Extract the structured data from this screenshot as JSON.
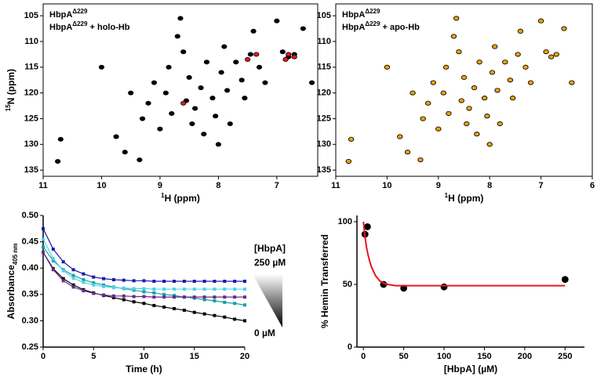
{
  "chart_data": [
    {
      "type": "scatter",
      "xlabel_sup": "1",
      "xlabel": "H (ppm)",
      "ylabel_sup": "15",
      "ylabel": "N (ppm)",
      "xlim": [
        11,
        6.3
      ],
      "ylim": [
        136.2,
        102.7
      ],
      "xticks": [
        11,
        10,
        9,
        8,
        7
      ],
      "yticks": [
        105,
        110,
        115,
        120,
        125,
        130,
        135
      ],
      "series": [
        {
          "name": "HbpA",
          "name_sup": "Δ229",
          "color": "#000000",
          "x": [
            10.75,
            10.7,
            10.0,
            9.75,
            9.6,
            9.35,
            9.3,
            9.2,
            9.1,
            9.0,
            8.9,
            8.85,
            8.8,
            8.7,
            8.6,
            8.55,
            8.5,
            8.45,
            8.4,
            8.3,
            8.25,
            8.2,
            8.1,
            8.05,
            7.95,
            7.9,
            7.85,
            7.8,
            7.7,
            7.6,
            7.55,
            7.45,
            7.4,
            7.3,
            7.2,
            7.0,
            6.9,
            6.8,
            6.7,
            6.55,
            6.4,
            8.65,
            9.5,
            8.0
          ],
          "y": [
            133.3,
            129,
            115,
            128.5,
            131.5,
            133,
            125,
            122,
            118,
            127,
            120,
            115,
            124,
            109,
            112,
            121.5,
            117,
            126,
            123,
            119,
            128,
            114,
            121,
            124.5,
            116,
            111,
            119.5,
            126,
            114,
            117.5,
            121,
            112.5,
            108,
            115,
            118,
            106,
            112,
            113,
            112.5,
            107.5,
            118,
            105.5,
            120,
            130
          ]
        },
        {
          "name": "HbpA",
          "name_sup": "Δ229",
          "name_suffix": " + holo-Hb",
          "color": "#e8171b",
          "x": [
            7.5,
            7.35,
            6.8,
            6.7,
            8.6,
            6.85
          ],
          "y": [
            113.5,
            112.5,
            112.5,
            113,
            122,
            113.5
          ]
        }
      ]
    },
    {
      "type": "scatter",
      "xlabel_sup": "1",
      "xlabel": "H (ppm)",
      "xlim": [
        11,
        6
      ],
      "ylim": [
        136.2,
        102.7
      ],
      "xticks": [
        11,
        10,
        9,
        8,
        7,
        6
      ],
      "yticks": [
        105,
        110,
        115,
        120,
        125,
        130,
        135
      ],
      "series": [
        {
          "name": "HbpA",
          "name_sup": "Δ229",
          "color": "#000000",
          "x": [
            10.75,
            10.7,
            10.0,
            9.75,
            9.6,
            9.35,
            9.3,
            9.2,
            9.1,
            9.0,
            8.9,
            8.85,
            8.8,
            8.7,
            8.6,
            8.55,
            8.5,
            8.45,
            8.4,
            8.3,
            8.25,
            8.2,
            8.1,
            8.05,
            7.95,
            7.9,
            7.85,
            7.8,
            7.7,
            7.6,
            7.55,
            7.45,
            7.4,
            7.3,
            7.2,
            7.0,
            6.9,
            6.8,
            6.7,
            6.55,
            6.4,
            8.65,
            9.5,
            8.0
          ],
          "y": [
            133.3,
            129,
            115,
            128.5,
            131.5,
            133,
            125,
            122,
            118,
            127,
            120,
            115,
            124,
            109,
            112,
            121.5,
            117,
            126,
            123,
            119,
            128,
            114,
            121,
            124.5,
            116,
            111,
            119.5,
            126,
            114,
            117.5,
            121,
            112.5,
            108,
            115,
            118,
            106,
            112,
            113,
            112.5,
            107.5,
            118,
            105.5,
            120,
            130
          ]
        },
        {
          "name": "HbpA",
          "name_sup": "Δ229",
          "name_suffix": " + apo-Hb",
          "color": "#f5a300",
          "x": [
            10.75,
            10.7,
            10.0,
            9.75,
            9.6,
            9.35,
            9.3,
            9.2,
            9.1,
            9.0,
            8.9,
            8.85,
            8.8,
            8.7,
            8.6,
            8.55,
            8.5,
            8.45,
            8.4,
            8.3,
            8.25,
            8.2,
            8.1,
            8.05,
            7.95,
            7.9,
            7.85,
            7.8,
            7.7,
            7.6,
            7.55,
            7.45,
            7.4,
            7.3,
            7.2,
            7.0,
            6.9,
            6.8,
            6.7,
            6.55,
            6.4,
            8.65,
            9.5,
            8.0
          ],
          "y": [
            133.3,
            129,
            115,
            128.5,
            131.5,
            133,
            125,
            122,
            118,
            127,
            120,
            115,
            124,
            109,
            112,
            121.5,
            117,
            126,
            123,
            119,
            128,
            114,
            121,
            124.5,
            116,
            111,
            119.5,
            126,
            114,
            117.5,
            121,
            112.5,
            108,
            115,
            118,
            106,
            112,
            113,
            112.5,
            107.5,
            118,
            105.5,
            120,
            130
          ]
        }
      ]
    },
    {
      "type": "line",
      "xlabel": "Time (h)",
      "ylabel": "Absorbance",
      "ylabel_sub": "405 nm",
      "xlim": [
        0,
        20
      ],
      "ylim": [
        0.25,
        0.5
      ],
      "xticks": [
        0,
        5,
        10,
        15,
        20
      ],
      "yticks": [
        0.25,
        {
          "value": 0.3,
          "label": "0.30"
        },
        0.35,
        {
          "value": 0.4,
          "label": "0.40"
        },
        0.45,
        {
          "value": 0.5,
          "label": "0.50"
        }
      ],
      "legend_title": "[HbpA]",
      "legend_max": "250 µM",
      "legend_min": "0 µM",
      "x": [
        0,
        1,
        2,
        3,
        4,
        5,
        6,
        7,
        8,
        9,
        10,
        11,
        12,
        13,
        14,
        15,
        16,
        17,
        18,
        19,
        20
      ],
      "series": [
        {
          "color": "#000000",
          "values": [
            0.43,
            0.399,
            0.38,
            0.368,
            0.359,
            0.353,
            0.348,
            0.344,
            0.34,
            0.336,
            0.333,
            0.329,
            0.326,
            0.323,
            0.32,
            0.316,
            0.313,
            0.31,
            0.307,
            0.303,
            0.3
          ]
        },
        {
          "color": "#17a0a0",
          "values": [
            0.44,
            0.414,
            0.397,
            0.386,
            0.378,
            0.372,
            0.368,
            0.364,
            0.361,
            0.358,
            0.355,
            0.353,
            0.35,
            0.348,
            0.345,
            0.343,
            0.34,
            0.338,
            0.335,
            0.333,
            0.33
          ]
        },
        {
          "color": "#6a2a8a",
          "values": [
            0.43,
            0.397,
            0.376,
            0.364,
            0.357,
            0.352,
            0.349,
            0.347,
            0.347,
            0.346,
            0.346,
            0.345,
            0.345,
            0.345,
            0.345,
            0.345,
            0.345,
            0.345,
            0.345,
            0.345,
            0.345
          ]
        },
        {
          "color": "#4fd3e6",
          "values": [
            0.455,
            0.418,
            0.395,
            0.381,
            0.373,
            0.368,
            0.365,
            0.363,
            0.362,
            0.361,
            0.361,
            0.36,
            0.36,
            0.36,
            0.36,
            0.36,
            0.36,
            0.36,
            0.36,
            0.36,
            0.36
          ]
        },
        {
          "color": "#1c1ca8",
          "values": [
            0.475,
            0.436,
            0.412,
            0.397,
            0.389,
            0.383,
            0.38,
            0.378,
            0.377,
            0.376,
            0.376,
            0.375,
            0.375,
            0.375,
            0.375,
            0.375,
            0.375,
            0.375,
            0.375,
            0.375,
            0.375
          ]
        }
      ]
    },
    {
      "type": "scatter",
      "xlabel": "[HbpA] (µM)",
      "ylabel": "% Hemin Transferred",
      "xlim": [
        -8,
        274
      ],
      "ylim": [
        0,
        105
      ],
      "xticks": [
        0,
        50,
        100,
        150,
        200,
        250
      ],
      "yticks": [
        0,
        50,
        100
      ],
      "series": [
        {
          "color": "#000000",
          "x": [
            2,
            5,
            25,
            50,
            100,
            250
          ],
          "y": [
            90,
            96,
            50,
            47,
            48,
            54
          ]
        },
        {
          "color": "#e8171b",
          "type": "line",
          "x": [
            0,
            2,
            4,
            6,
            8,
            10,
            15,
            20,
            25,
            30,
            40,
            50,
            75,
            100,
            150,
            200,
            250
          ],
          "y": [
            100,
            88,
            79,
            73,
            68,
            64,
            57,
            53,
            51,
            50,
            49,
            49,
            49,
            49,
            49,
            49,
            49
          ]
        }
      ]
    }
  ]
}
